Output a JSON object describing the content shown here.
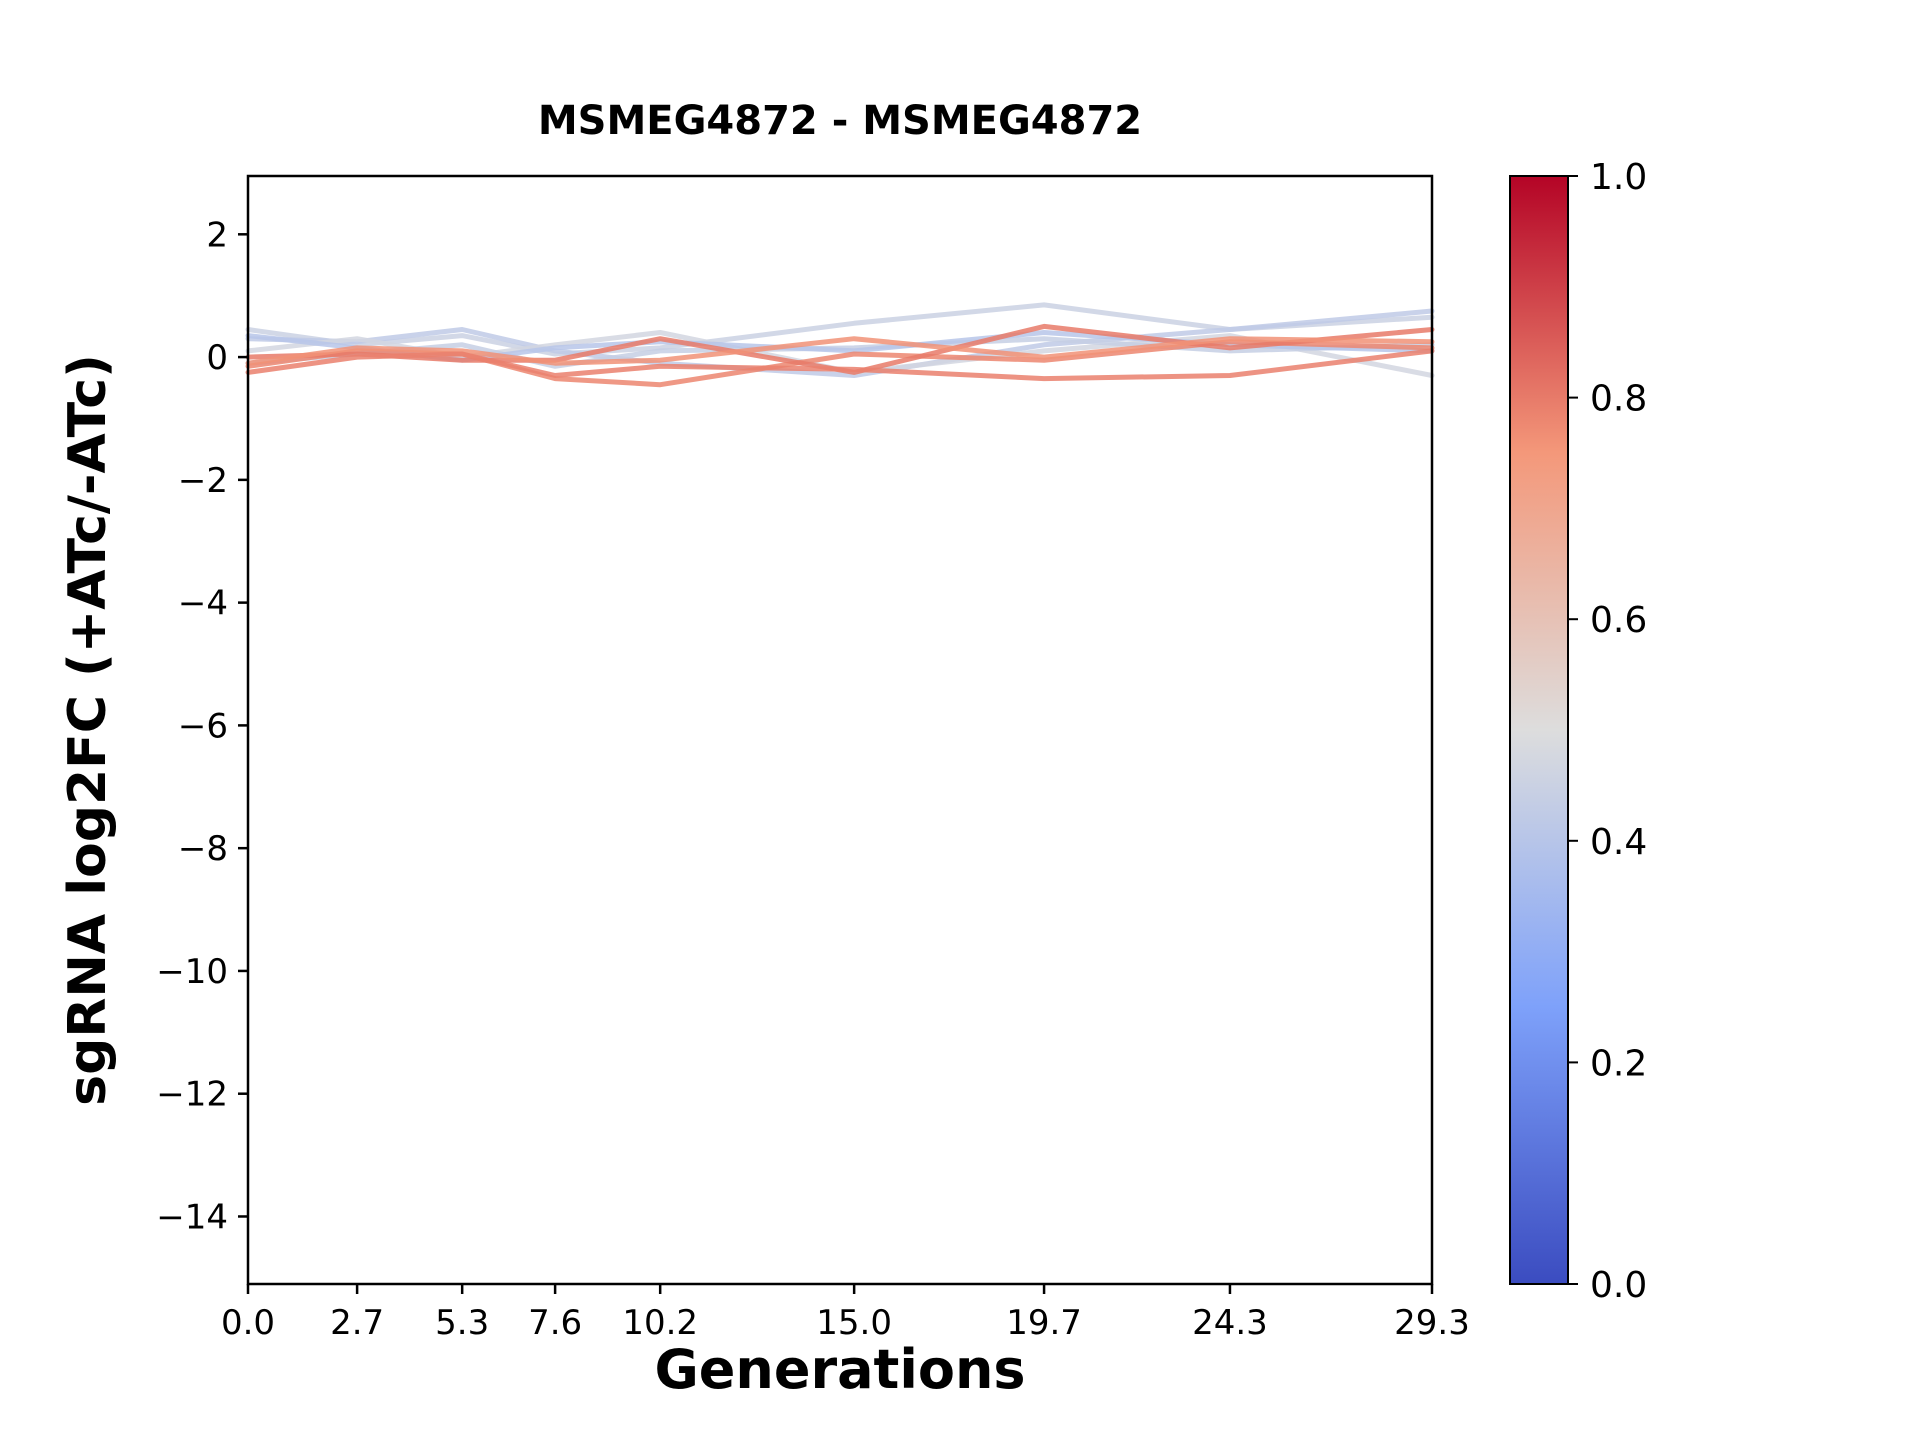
{
  "chart_data": {
    "type": "line",
    "title": "MSMEG4872 - MSMEG4872",
    "xlabel": "Generations",
    "ylabel": "sgRNA log2FC (+ATc/-ATc)",
    "x": [
      0.0,
      2.7,
      5.3,
      7.6,
      10.2,
      15.0,
      19.7,
      24.3,
      29.3
    ],
    "xticks": [
      0.0,
      2.7,
      5.3,
      7.6,
      10.2,
      15.0,
      19.7,
      24.3,
      29.3
    ],
    "yticks": [
      2,
      0,
      -2,
      -4,
      -6,
      -8,
      -10,
      -12,
      -14
    ],
    "xlim": [
      0,
      29.3
    ],
    "ylim": [
      -15.1,
      2.95
    ],
    "grid": false,
    "legend": "none",
    "series": [
      {
        "c": 0.45,
        "values": [
          0.45,
          0.2,
          0.35,
          0.05,
          0.15,
          0.55,
          0.85,
          0.45,
          0.65
        ]
      },
      {
        "c": 0.42,
        "values": [
          0.3,
          0.25,
          0.45,
          0.1,
          -0.1,
          -0.3,
          0.2,
          0.45,
          0.75
        ]
      },
      {
        "c": 0.47,
        "values": [
          0.1,
          0.3,
          0.0,
          0.2,
          0.4,
          -0.25,
          0.1,
          0.35,
          -0.3
        ]
      },
      {
        "c": 0.44,
        "values": [
          -0.1,
          0.05,
          0.2,
          -0.15,
          0.1,
          0.15,
          0.3,
          0.1,
          0.2
        ]
      },
      {
        "c": 0.4,
        "values": [
          0.35,
          0.15,
          -0.05,
          0.15,
          0.25,
          0.1,
          0.4,
          0.2,
          0.1
        ]
      },
      {
        "c": 0.78,
        "values": [
          -0.15,
          0.1,
          0.05,
          -0.35,
          -0.45,
          0.05,
          -0.05,
          0.25,
          0.15
        ]
      },
      {
        "c": 0.8,
        "values": [
          0.0,
          0.05,
          -0.05,
          -0.05,
          0.3,
          -0.25,
          0.5,
          0.15,
          0.45
        ]
      },
      {
        "c": 0.76,
        "values": [
          -0.1,
          0.15,
          0.1,
          -0.1,
          -0.05,
          0.3,
          0.0,
          0.3,
          0.25
        ]
      },
      {
        "c": 0.79,
        "values": [
          -0.25,
          0.0,
          0.05,
          -0.3,
          -0.15,
          -0.2,
          -0.35,
          -0.3,
          0.1
        ]
      }
    ],
    "colormap": {
      "name": "coolwarm",
      "stops": [
        {
          "t": 0.0,
          "color": "#3b4cc0"
        },
        {
          "t": 0.25,
          "color": "#7ea1fa"
        },
        {
          "t": 0.5,
          "color": "#dddddd"
        },
        {
          "t": 0.75,
          "color": "#f4987a"
        },
        {
          "t": 1.0,
          "color": "#b40426"
        }
      ]
    },
    "colorbar": {
      "min": 0.0,
      "max": 1.0,
      "ticks": [
        0.0,
        0.2,
        0.4,
        0.6,
        0.8,
        1.0
      ]
    }
  }
}
